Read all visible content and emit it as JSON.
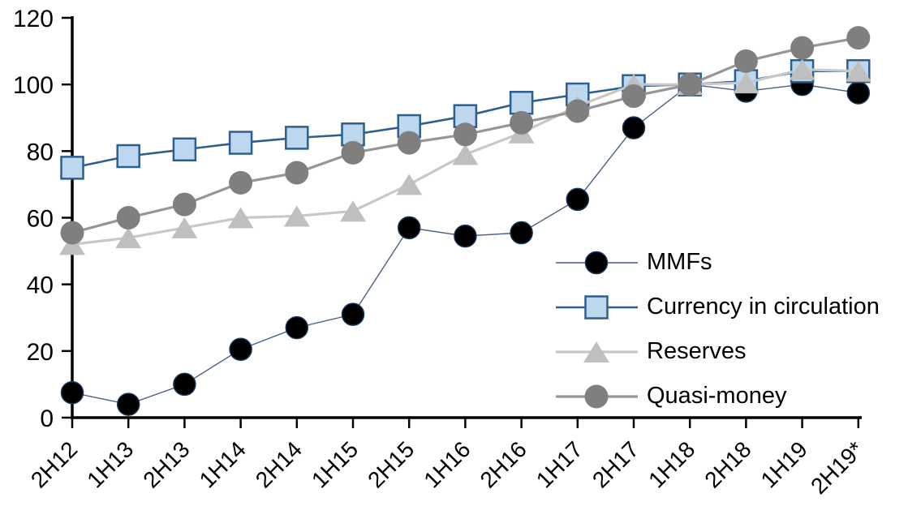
{
  "chart_data": {
    "type": "line",
    "title": "",
    "xlabel": "",
    "ylabel": "",
    "ylim": [
      0,
      120
    ],
    "yticks": [
      0,
      20,
      40,
      60,
      80,
      100,
      120
    ],
    "grid": false,
    "legend_position": "inside-right",
    "categories": [
      "2H12",
      "1H13",
      "2H13",
      "1H14",
      "2H14",
      "1H15",
      "2H15",
      "1H16",
      "2H16",
      "1H17",
      "2H17",
      "1H18",
      "2H18",
      "1H19",
      "2H19*"
    ],
    "series": [
      {
        "name": "MMFs",
        "marker": "circle",
        "marker_size": 27,
        "marker_fill": "#000000",
        "marker_stroke": "#17365D",
        "marker_stroke_width": 1.5,
        "line_color": "#4A5F85",
        "line_width": 1.4,
        "values": [
          7.5,
          4,
          10,
          20.5,
          27,
          31,
          57,
          54.5,
          55.5,
          65.5,
          87,
          100,
          98,
          100,
          97.5
        ]
      },
      {
        "name": "Currency in circulation",
        "marker": "square",
        "marker_size": 27,
        "marker_fill": "#BDD7EE",
        "marker_stroke": "#2E5E8E",
        "marker_stroke_width": 2.5,
        "line_color": "#2E5E8E",
        "line_width": 2.6,
        "values": [
          75,
          78.5,
          80.5,
          82.5,
          84,
          85,
          87.5,
          90.5,
          94.5,
          97,
          99.5,
          100,
          101,
          104,
          104
        ]
      },
      {
        "name": "Reserves",
        "marker": "triangle",
        "marker_size": 30,
        "marker_fill": "#BFBFBF",
        "marker_stroke": "none",
        "marker_stroke_width": 0,
        "line_color": "#C8C8C8",
        "line_width": 3.2,
        "values": [
          52,
          54,
          57,
          60,
          60.5,
          62,
          70,
          79,
          85.5,
          93.5,
          100,
          100,
          100.5,
          104.5,
          104
        ]
      },
      {
        "name": "Quasi-money",
        "marker": "circle",
        "marker_size": 29,
        "marker_fill": "#7F7F7F",
        "marker_stroke": "none",
        "marker_stroke_width": 0,
        "line_color": "#969696",
        "line_width": 3.2,
        "values": [
          55.5,
          60,
          64,
          70.5,
          73.5,
          79.5,
          82.5,
          85,
          88.5,
          92,
          96.5,
          100,
          107,
          111,
          114
        ]
      }
    ]
  }
}
